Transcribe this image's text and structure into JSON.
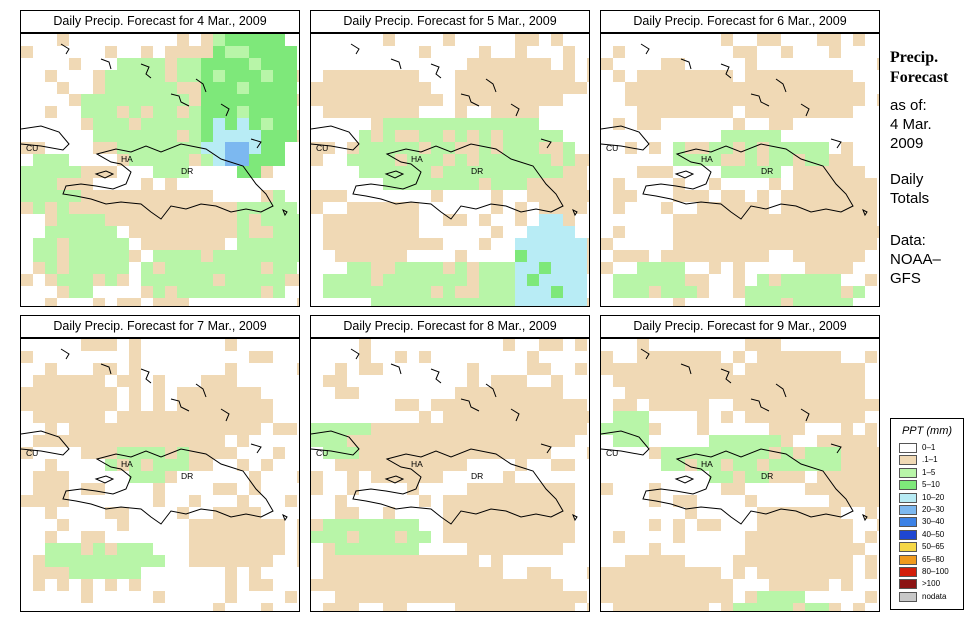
{
  "panels": [
    {
      "title": "Daily Precip. Forecast for  4 Mar., 2009"
    },
    {
      "title": "Daily Precip. Forecast for  5 Mar., 2009"
    },
    {
      "title": "Daily Precip. Forecast for  6 Mar., 2009"
    },
    {
      "title": "Daily Precip. Forecast for  7 Mar., 2009"
    },
    {
      "title": "Daily Precip. Forecast for  8 Mar., 2009"
    },
    {
      "title": "Daily Precip. Forecast for  9 Mar., 2009"
    }
  ],
  "country_labels": {
    "cu": "CU",
    "ha": "HA",
    "dr": "DR"
  },
  "sidebar": {
    "title_line1": "Precip.",
    "title_line2": "Forecast",
    "asof_line1": "as of:",
    "asof_line2": "4 Mar.",
    "asof_line3": "2009",
    "daily_line1": "Daily",
    "daily_line2": "Totals",
    "data_line1": "Data:",
    "data_line2": "NOAA–",
    "data_line3": "GFS"
  },
  "legend": {
    "title": "PPT (mm)",
    "items": [
      {
        "label": "0–1",
        "color": "#ffffff"
      },
      {
        "label": ".1–1",
        "color": "#f0d9b5"
      },
      {
        "label": "1–5",
        "color": "#b8f5a8"
      },
      {
        "label": "5–10",
        "color": "#7ee87a"
      },
      {
        "label": "10–20",
        "color": "#b8ecf5"
      },
      {
        "label": "20–30",
        "color": "#7cb8f0"
      },
      {
        "label": "30–40",
        "color": "#3c82e6"
      },
      {
        "label": "40–50",
        "color": "#1e46d2"
      },
      {
        "label": "50–65",
        "color": "#f5d746"
      },
      {
        "label": "65–80",
        "color": "#f09a1e"
      },
      {
        "label": "80–100",
        "color": "#d21e0a"
      },
      {
        "label": ">100",
        "color": "#8c1414"
      },
      {
        "label": "nodata",
        "color": "#c8c8c8"
      }
    ]
  }
}
